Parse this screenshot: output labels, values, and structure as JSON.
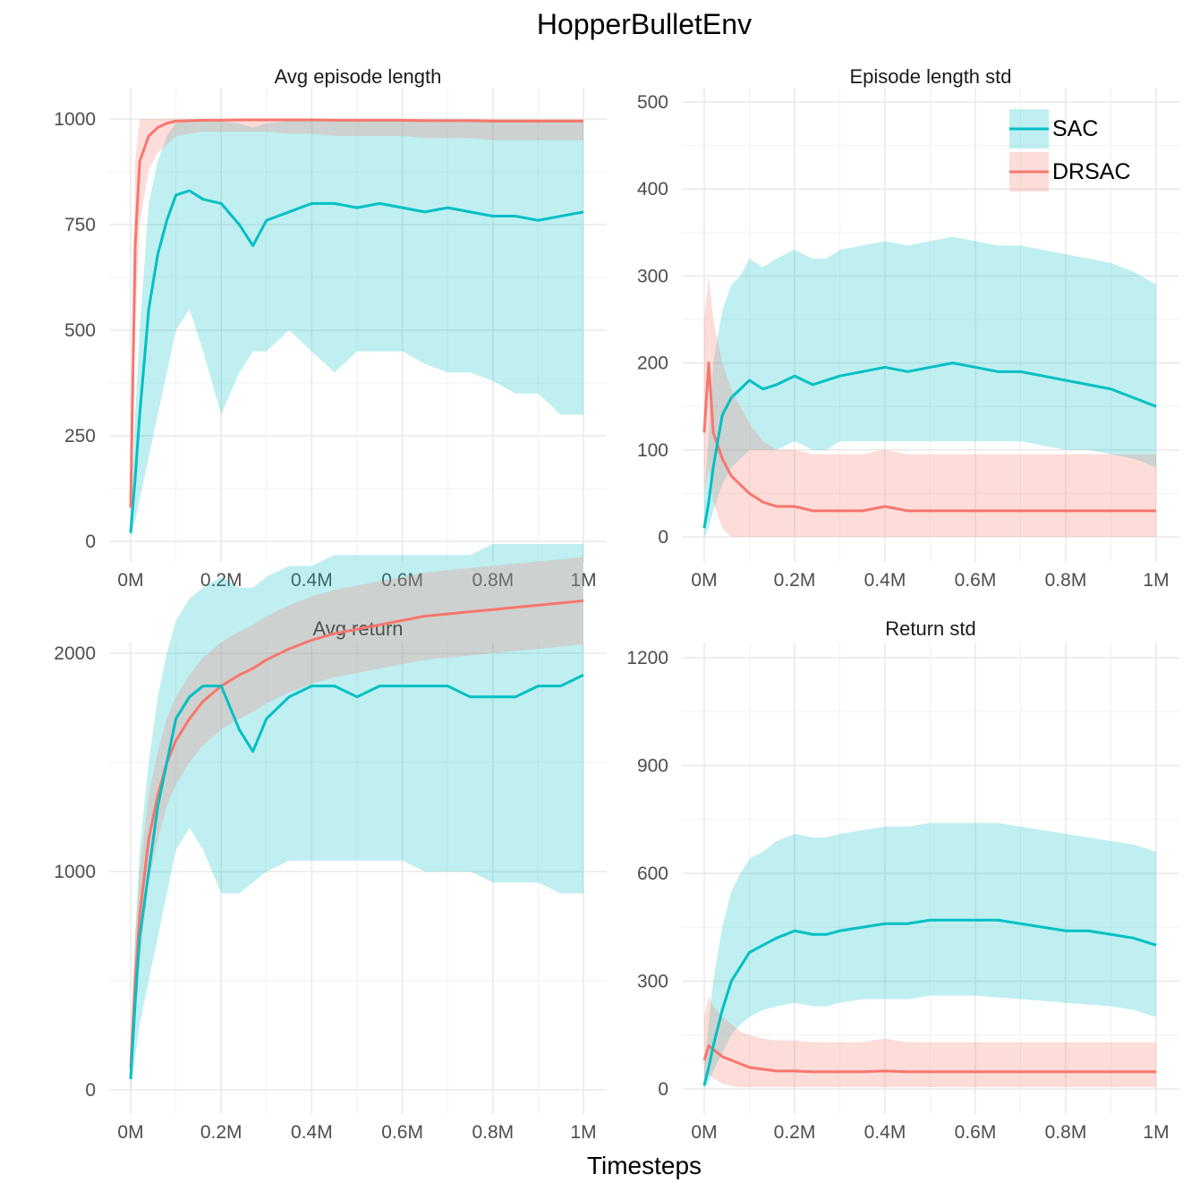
{
  "figure": {
    "title": "HopperBulletEnv",
    "xlabel": "Timesteps"
  },
  "legend": {
    "placement": "top-right of Episode length std panel",
    "items": [
      {
        "label": "SAC",
        "color": "#00BFC4"
      },
      {
        "label": "DRSAC",
        "color": "#F8766D"
      }
    ]
  },
  "chart_data": [
    {
      "type": "line",
      "title": "Avg episode length",
      "xlim": [
        0,
        1000000
      ],
      "ylim": [
        0,
        1000
      ],
      "x_ticks": [
        0,
        200000,
        400000,
        600000,
        800000,
        1000000
      ],
      "x_tick_labels": [
        "0M",
        "0.2M",
        "0.4M",
        "0.6M",
        "0.8M",
        "1M"
      ],
      "y_ticks": [
        0,
        250,
        500,
        750,
        1000
      ],
      "y_tick_labels": [
        "0",
        "250",
        "500",
        "750",
        "1000"
      ],
      "series": [
        {
          "name": "SAC",
          "x": [
            0,
            10000,
            20000,
            40000,
            60000,
            80000,
            100000,
            130000,
            160000,
            200000,
            240000,
            270000,
            300000,
            350000,
            400000,
            450000,
            500000,
            550000,
            600000,
            650000,
            700000,
            750000,
            800000,
            850000,
            900000,
            950000,
            1000000
          ],
          "mean": [
            20,
            150,
            300,
            550,
            680,
            760,
            820,
            830,
            810,
            800,
            750,
            700,
            760,
            780,
            800,
            800,
            790,
            800,
            790,
            780,
            790,
            780,
            770,
            770,
            760,
            770,
            780
          ],
          "lower": [
            10,
            50,
            100,
            200,
            300,
            400,
            500,
            550,
            450,
            300,
            400,
            450,
            450,
            500,
            450,
            400,
            450,
            450,
            450,
            420,
            400,
            400,
            380,
            350,
            350,
            300,
            300
          ],
          "upper": [
            60,
            300,
            500,
            800,
            900,
            960,
            990,
            995,
            995,
            995,
            990,
            980,
            990,
            995,
            995,
            995,
            995,
            995,
            995,
            995,
            995,
            995,
            995,
            995,
            995,
            995,
            995
          ]
        },
        {
          "name": "DRSAC",
          "x": [
            0,
            10000,
            20000,
            40000,
            60000,
            80000,
            100000,
            130000,
            160000,
            200000,
            240000,
            270000,
            300000,
            350000,
            400000,
            450000,
            500000,
            550000,
            600000,
            650000,
            700000,
            750000,
            800000,
            850000,
            900000,
            950000,
            1000000
          ],
          "mean": [
            80,
            700,
            900,
            960,
            980,
            990,
            995,
            996,
            997,
            997,
            998,
            998,
            998,
            998,
            998,
            997,
            997,
            997,
            997,
            996,
            996,
            996,
            995,
            995,
            995,
            995,
            995
          ],
          "lower": [
            50,
            500,
            750,
            880,
            920,
            940,
            960,
            965,
            970,
            970,
            970,
            970,
            970,
            965,
            965,
            960,
            960,
            960,
            960,
            955,
            955,
            955,
            950,
            950,
            950,
            950,
            950
          ],
          "upper": [
            200,
            900,
            1000,
            1000,
            1000,
            1000,
            1000,
            1000,
            1000,
            1000,
            1000,
            1000,
            1000,
            1000,
            1000,
            1000,
            1000,
            1000,
            1000,
            1000,
            1000,
            1000,
            1000,
            1000,
            1000,
            1000,
            1000
          ]
        }
      ]
    },
    {
      "type": "line",
      "title": "Episode length std",
      "xlim": [
        0,
        1000000
      ],
      "ylim": [
        0,
        500
      ],
      "x_ticks": [
        0,
        200000,
        400000,
        600000,
        800000,
        1000000
      ],
      "x_tick_labels": [
        "0M",
        "0.2M",
        "0.4M",
        "0.6M",
        "0.8M",
        "1M"
      ],
      "y_ticks": [
        0,
        100,
        200,
        300,
        400,
        500
      ],
      "y_tick_labels": [
        "0",
        "100",
        "200",
        "300",
        "400",
        "500"
      ],
      "series": [
        {
          "name": "SAC",
          "x": [
            0,
            10000,
            20000,
            40000,
            60000,
            80000,
            100000,
            130000,
            160000,
            200000,
            240000,
            270000,
            300000,
            350000,
            400000,
            450000,
            500000,
            550000,
            600000,
            650000,
            700000,
            750000,
            800000,
            850000,
            900000,
            950000,
            1000000
          ],
          "mean": [
            10,
            40,
            80,
            140,
            160,
            170,
            180,
            170,
            175,
            185,
            175,
            180,
            185,
            190,
            195,
            190,
            195,
            200,
            195,
            190,
            190,
            185,
            180,
            175,
            170,
            160,
            150
          ],
          "lower": [
            0,
            10,
            30,
            60,
            80,
            90,
            100,
            100,
            100,
            110,
            100,
            100,
            110,
            110,
            110,
            110,
            110,
            110,
            110,
            110,
            110,
            105,
            100,
            100,
            95,
            90,
            80
          ],
          "upper": [
            40,
            120,
            200,
            260,
            290,
            300,
            320,
            310,
            320,
            330,
            320,
            320,
            330,
            335,
            340,
            335,
            340,
            345,
            340,
            335,
            335,
            330,
            325,
            320,
            315,
            305,
            290
          ]
        },
        {
          "name": "DRSAC",
          "x": [
            0,
            10000,
            20000,
            40000,
            60000,
            80000,
            100000,
            130000,
            160000,
            200000,
            240000,
            270000,
            300000,
            350000,
            400000,
            450000,
            500000,
            550000,
            600000,
            650000,
            700000,
            750000,
            800000,
            850000,
            900000,
            950000,
            1000000
          ],
          "mean": [
            120,
            200,
            120,
            90,
            70,
            60,
            50,
            40,
            35,
            35,
            30,
            30,
            30,
            30,
            35,
            30,
            30,
            30,
            30,
            30,
            30,
            30,
            30,
            30,
            30,
            30,
            30
          ],
          "lower": [
            50,
            80,
            40,
            10,
            0,
            0,
            0,
            0,
            0,
            0,
            0,
            0,
            0,
            0,
            0,
            0,
            0,
            0,
            0,
            0,
            0,
            0,
            0,
            0,
            0,
            0,
            0
          ],
          "upper": [
            250,
            300,
            250,
            200,
            170,
            150,
            130,
            110,
            100,
            100,
            95,
            95,
            95,
            95,
            100,
            95,
            95,
            95,
            95,
            95,
            95,
            95,
            95,
            95,
            95,
            95,
            95
          ]
        }
      ]
    },
    {
      "type": "line",
      "title": "Avg return",
      "xlim": [
        0,
        1000000
      ],
      "ylim": [
        0,
        2700
      ],
      "x_ticks": [
        0,
        200000,
        400000,
        600000,
        800000,
        1000000
      ],
      "x_tick_labels": [
        "0M",
        "0.2M",
        "0.4M",
        "0.6M",
        "0.8M",
        "1M"
      ],
      "y_ticks": [
        0,
        1000,
        2000
      ],
      "y_tick_labels": [
        "0",
        "1000",
        "2000"
      ],
      "series": [
        {
          "name": "SAC",
          "x": [
            0,
            10000,
            20000,
            40000,
            60000,
            80000,
            100000,
            130000,
            160000,
            200000,
            240000,
            270000,
            300000,
            350000,
            400000,
            450000,
            500000,
            550000,
            600000,
            650000,
            700000,
            750000,
            800000,
            850000,
            900000,
            950000,
            1000000
          ],
          "mean": [
            50,
            400,
            700,
            1000,
            1300,
            1500,
            1700,
            1800,
            1850,
            1850,
            1650,
            1550,
            1700,
            1800,
            1850,
            1850,
            1800,
            1850,
            1850,
            1850,
            1850,
            1800,
            1800,
            1800,
            1850,
            1850,
            1900
          ],
          "lower": [
            0,
            150,
            300,
            500,
            700,
            900,
            1100,
            1200,
            1100,
            900,
            900,
            950,
            1000,
            1050,
            1050,
            1050,
            1050,
            1050,
            1050,
            1000,
            1000,
            1000,
            950,
            950,
            950,
            900,
            900
          ],
          "upper": [
            200,
            700,
            1100,
            1500,
            1800,
            2000,
            2150,
            2250,
            2300,
            2350,
            2300,
            2300,
            2350,
            2400,
            2400,
            2450,
            2450,
            2450,
            2450,
            2450,
            2450,
            2450,
            2500,
            2500,
            2500,
            2500,
            2500
          ]
        },
        {
          "name": "DRSAC",
          "x": [
            0,
            10000,
            20000,
            40000,
            60000,
            80000,
            100000,
            130000,
            160000,
            200000,
            240000,
            270000,
            300000,
            350000,
            400000,
            450000,
            500000,
            550000,
            600000,
            650000,
            700000,
            750000,
            800000,
            850000,
            900000,
            950000,
            1000000
          ],
          "mean": [
            100,
            500,
            800,
            1150,
            1350,
            1500,
            1600,
            1700,
            1780,
            1850,
            1900,
            1930,
            1970,
            2020,
            2060,
            2090,
            2110,
            2130,
            2150,
            2170,
            2180,
            2190,
            2200,
            2210,
            2220,
            2230,
            2240
          ],
          "lower": [
            50,
            300,
            600,
            950,
            1150,
            1300,
            1400,
            1500,
            1580,
            1650,
            1700,
            1730,
            1770,
            1820,
            1860,
            1890,
            1910,
            1930,
            1950,
            1970,
            1980,
            1990,
            2000,
            2010,
            2020,
            2030,
            2040
          ],
          "upper": [
            200,
            700,
            1000,
            1350,
            1550,
            1700,
            1800,
            1900,
            1980,
            2050,
            2100,
            2130,
            2170,
            2220,
            2260,
            2290,
            2310,
            2330,
            2350,
            2370,
            2380,
            2390,
            2400,
            2410,
            2420,
            2430,
            2440
          ]
        }
      ]
    },
    {
      "type": "line",
      "title": "Return std",
      "xlim": [
        0,
        1000000
      ],
      "ylim": [
        0,
        1200
      ],
      "x_ticks": [
        0,
        200000,
        400000,
        600000,
        800000,
        1000000
      ],
      "x_tick_labels": [
        "0M",
        "0.2M",
        "0.4M",
        "0.6M",
        "0.8M",
        "1M"
      ],
      "y_ticks": [
        0,
        300,
        600,
        900,
        1200
      ],
      "y_tick_labels": [
        "0",
        "300",
        "600",
        "900",
        "1200"
      ],
      "series": [
        {
          "name": "SAC",
          "x": [
            0,
            10000,
            20000,
            40000,
            60000,
            80000,
            100000,
            130000,
            160000,
            200000,
            240000,
            270000,
            300000,
            350000,
            400000,
            450000,
            500000,
            550000,
            600000,
            650000,
            700000,
            750000,
            800000,
            850000,
            900000,
            950000,
            1000000
          ],
          "mean": [
            10,
            60,
            120,
            220,
            300,
            340,
            380,
            400,
            420,
            440,
            430,
            430,
            440,
            450,
            460,
            460,
            470,
            470,
            470,
            470,
            460,
            450,
            440,
            440,
            430,
            420,
            400
          ],
          "lower": [
            0,
            20,
            50,
            100,
            150,
            180,
            200,
            220,
            230,
            240,
            230,
            230,
            240,
            250,
            250,
            250,
            260,
            260,
            260,
            255,
            250,
            245,
            240,
            235,
            230,
            220,
            200
          ],
          "upper": [
            50,
            180,
            300,
            450,
            550,
            600,
            640,
            660,
            690,
            710,
            700,
            700,
            710,
            720,
            730,
            730,
            740,
            740,
            740,
            740,
            730,
            720,
            710,
            700,
            690,
            680,
            660
          ]
        },
        {
          "name": "DRSAC",
          "x": [
            0,
            10000,
            20000,
            40000,
            60000,
            80000,
            100000,
            130000,
            160000,
            200000,
            240000,
            270000,
            300000,
            350000,
            400000,
            450000,
            500000,
            550000,
            600000,
            650000,
            700000,
            750000,
            800000,
            850000,
            900000,
            950000,
            1000000
          ],
          "mean": [
            80,
            120,
            110,
            90,
            80,
            70,
            60,
            55,
            50,
            50,
            48,
            48,
            48,
            48,
            50,
            48,
            48,
            48,
            48,
            48,
            48,
            48,
            48,
            48,
            48,
            48,
            48
          ],
          "lower": [
            20,
            40,
            30,
            15,
            8,
            5,
            5,
            5,
            5,
            5,
            5,
            5,
            5,
            5,
            5,
            5,
            5,
            5,
            5,
            5,
            5,
            5,
            5,
            5,
            5,
            5,
            5
          ],
          "upper": [
            200,
            260,
            230,
            200,
            180,
            160,
            150,
            140,
            135,
            135,
            130,
            130,
            130,
            130,
            140,
            130,
            130,
            130,
            130,
            130,
            130,
            130,
            130,
            130,
            130,
            130,
            130
          ]
        }
      ]
    }
  ]
}
